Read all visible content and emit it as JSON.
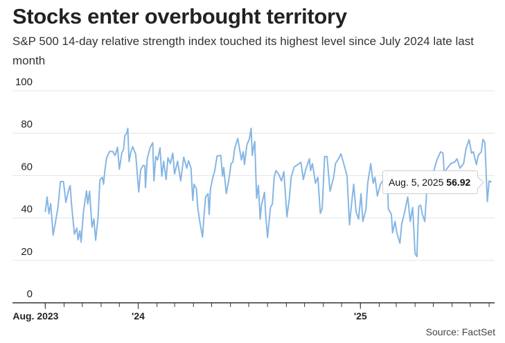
{
  "chart_data": {
    "type": "line",
    "title": "Stocks enter overbought territory",
    "subtitle": "S&P 500 14-day relative strength index touched its highest level since July 2024 late last month",
    "source": "Source: FactSet",
    "xlabel": "",
    "ylabel": "",
    "ylim": [
      0,
      100
    ],
    "y_ticks": [
      0,
      20,
      40,
      60,
      80,
      100
    ],
    "xlim": [
      "2023-06-08",
      "2025-08-10"
    ],
    "x_tick_labels": [
      {
        "date": "2023-08-01",
        "label": "Aug. 2023"
      },
      {
        "date": "2024-01-01",
        "label": "'24"
      },
      {
        "date": "2025-01-01",
        "label": "'25"
      }
    ],
    "x_minor_ticks": "monthly",
    "grid": true,
    "line_color": "#85b6e4",
    "tooltip": {
      "date": "Aug. 5, 2025",
      "value": "56.92"
    },
    "series": [
      {
        "x": [
          "2023-08-01",
          "2023-08-04",
          "2023-08-07",
          "2023-08-10",
          "2023-08-14",
          "2023-08-18",
          "2023-08-22",
          "2023-08-26",
          "2023-08-31",
          "2023-09-04",
          "2023-09-08",
          "2023-09-11",
          "2023-09-13",
          "2023-09-18",
          "2023-09-22",
          "2023-09-24",
          "2023-09-27",
          "2023-09-29",
          "2023-10-03",
          "2023-10-08",
          "2023-10-10",
          "2023-10-13",
          "2023-10-17",
          "2023-10-20",
          "2023-10-23",
          "2023-10-27",
          "2023-10-30",
          "2023-11-03",
          "2023-11-05",
          "2023-11-07",
          "2023-11-10",
          "2023-11-15",
          "2023-11-20",
          "2023-11-24",
          "2023-11-28",
          "2023-12-01",
          "2023-12-05",
          "2023-12-08",
          "2023-12-10",
          "2023-12-13",
          "2023-12-15",
          "2023-12-17",
          "2023-12-20",
          "2023-12-23",
          "2023-12-28",
          "2024-01-02",
          "2024-01-05",
          "2024-01-09",
          "2024-01-12",
          "2024-01-13",
          "2024-01-16",
          "2024-01-21",
          "2024-01-25",
          "2024-01-27",
          "2024-01-30",
          "2024-02-02",
          "2024-02-06",
          "2024-02-09",
          "2024-02-12",
          "2024-02-16",
          "2024-02-19",
          "2024-02-23",
          "2024-02-27",
          "2024-03-01",
          "2024-03-06",
          "2024-03-11",
          "2024-03-16",
          "2024-03-21",
          "2024-03-24",
          "2024-03-28",
          "2024-03-31",
          "2024-04-02",
          "2024-04-06",
          "2024-04-08",
          "2024-04-12",
          "2024-04-16",
          "2024-04-18",
          "2024-04-21",
          "2024-04-25",
          "2024-04-27",
          "2024-04-29",
          "2024-05-03",
          "2024-05-06",
          "2024-05-10",
          "2024-05-16",
          "2024-05-19",
          "2024-05-21",
          "2024-05-25",
          "2024-05-29",
          "2024-06-02",
          "2024-06-05",
          "2024-06-08",
          "2024-06-13",
          "2024-06-19",
          "2024-06-22",
          "2024-06-24",
          "2024-06-28",
          "2024-07-02",
          "2024-07-05",
          "2024-07-07",
          "2024-07-09",
          "2024-07-11",
          "2024-07-14",
          "2024-07-17",
          "2024-07-20",
          "2024-07-22",
          "2024-07-27",
          "2024-07-29",
          "2024-08-01",
          "2024-08-06",
          "2024-08-09",
          "2024-08-12",
          "2024-08-15",
          "2024-08-20",
          "2024-08-24",
          "2024-08-28",
          "2024-09-02",
          "2024-09-06",
          "2024-09-09",
          "2024-09-14",
          "2024-09-20",
          "2024-09-25",
          "2024-09-29",
          "2024-10-03",
          "2024-10-09",
          "2024-10-11",
          "2024-10-14",
          "2024-10-19",
          "2024-10-23",
          "2024-10-27",
          "2024-10-30",
          "2024-11-03",
          "2024-11-07",
          "2024-11-12",
          "2024-11-18",
          "2024-11-21",
          "2024-11-26",
          "2024-11-30",
          "2024-12-06",
          "2024-12-10",
          "2024-12-14",
          "2024-12-18",
          "2024-12-21",
          "2024-12-25",
          "2024-12-29",
          "2025-01-02",
          "2025-01-05",
          "2025-01-10",
          "2025-01-13",
          "2025-01-18",
          "2025-01-22",
          "2025-01-25",
          "2025-01-29",
          "2025-02-03",
          "2025-02-08",
          "2025-02-14",
          "2025-02-16",
          "2025-02-21",
          "2025-02-23",
          "2025-02-27",
          "2025-03-02",
          "2025-03-07",
          "2025-03-10",
          "2025-03-14",
          "2025-03-20",
          "2025-03-24",
          "2025-03-28",
          "2025-04-01",
          "2025-04-04",
          "2025-04-07",
          "2025-04-10",
          "2025-04-13",
          "2025-04-17",
          "2025-04-20",
          "2025-04-30",
          "2025-05-07",
          "2025-05-13",
          "2025-05-17",
          "2025-05-19",
          "2025-05-24",
          "2025-05-30",
          "2025-06-05",
          "2025-06-09",
          "2025-06-14",
          "2025-06-20",
          "2025-06-24",
          "2025-06-29",
          "2025-07-03",
          "2025-07-06",
          "2025-07-11",
          "2025-07-14",
          "2025-07-19",
          "2025-07-22",
          "2025-07-25",
          "2025-07-29",
          "2025-08-01",
          "2025-08-05"
        ],
        "y": [
          42.8,
          49.9,
          42,
          46.8,
          31.9,
          38.4,
          45,
          57.2,
          57.2,
          47.4,
          52.6,
          55.3,
          47.4,
          32.4,
          35.2,
          29.7,
          34,
          28.6,
          43.3,
          52.8,
          46.6,
          52.6,
          35.7,
          39.5,
          29.5,
          40.6,
          58,
          59.2,
          55.9,
          61.9,
          68.4,
          71.4,
          71.4,
          69.5,
          73.4,
          63,
          70.6,
          72.5,
          78.8,
          79.9,
          82.3,
          66.6,
          71.2,
          73.6,
          70,
          52.3,
          62.7,
          64.8,
          64.6,
          54.3,
          68.1,
          73.4,
          75.5,
          57.5,
          69,
          67.4,
          73.1,
          59.7,
          66.8,
          58.1,
          68.4,
          65.7,
          70.6,
          60.8,
          66.8,
          57.5,
          68.7,
          63.5,
          67,
          63.5,
          48.3,
          55.9,
          53.7,
          45,
          37.3,
          31,
          39.5,
          49.9,
          51.5,
          41.7,
          53.7,
          59.2,
          62.2,
          69.2,
          69.5,
          59.7,
          63.8,
          51.5,
          57.5,
          65.7,
          66.3,
          72.8,
          77.5,
          67.4,
          71.2,
          65.2,
          74.5,
          77.2,
          82.3,
          69.5,
          73.4,
          76.1,
          49.3,
          55.3,
          39.5,
          46,
          52.1,
          41.7,
          30.8,
          45,
          46.6,
          59.2,
          62.4,
          60.3,
          57.5,
          61.9,
          40.6,
          49.3,
          59.2,
          64.1,
          65.2,
          66.3,
          58.1,
          63,
          67.9,
          62.4,
          65.7,
          56.4,
          59.2,
          42.2,
          44.4,
          69,
          69,
          52.6,
          59.2,
          65.7,
          67.9,
          70.3,
          64.1,
          59.7,
          36.8,
          48.3,
          55.9,
          42.8,
          39.5,
          51.5,
          38.4,
          43.9,
          56.4,
          65.7,
          56.4,
          59.2,
          50.4,
          55.9,
          58,
          61.4,
          44.4,
          41.7,
          33,
          38.4,
          33,
          28.1,
          37.3,
          41.7,
          49.9,
          38.4,
          45,
          23.1,
          21.8,
          45.5,
          46,
          41.7,
          38.4,
          51.5,
          60.3,
          67.4,
          71.2,
          70.6,
          61.4,
          63.5,
          65.7,
          66.3,
          67.9,
          63.5,
          65.7,
          72.8,
          76.9,
          70.6,
          71.2,
          65.2,
          69.5,
          71.2,
          77.1,
          75.5,
          47.7,
          57.5,
          56.92
        ]
      }
    ]
  }
}
